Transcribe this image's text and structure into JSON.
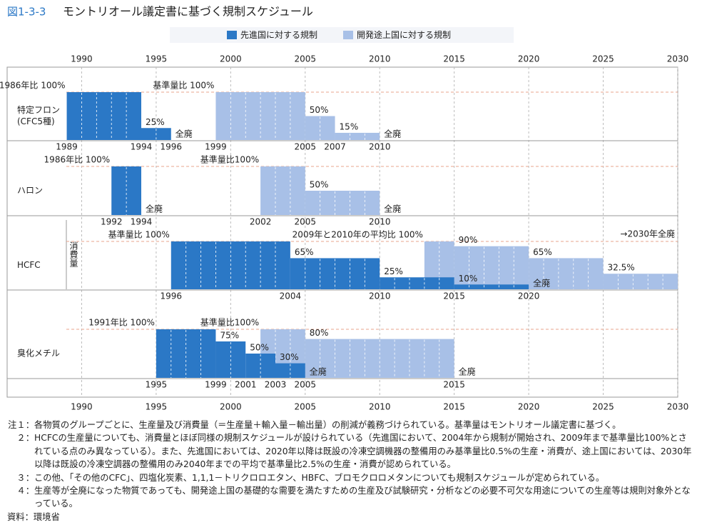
{
  "chart_data": {
    "type": "schedule",
    "figure_label": "図1-3-3",
    "title": "モントリオール議定書に基づく規制スケジュール",
    "series": [
      {
        "name": "先進国に対する規制",
        "color": "#2b78c6"
      },
      {
        "name": "開発途上国に対する規制",
        "color": "#a8c0e7"
      }
    ],
    "xlim": [
      1985,
      2030
    ],
    "xticks": [
      1990,
      1995,
      2000,
      2005,
      2010,
      2015,
      2020,
      2025,
      2030
    ],
    "grid": true,
    "groups": [
      {
        "name": "特定フロン",
        "subname": "(CFC5種)",
        "ylim": [
          0,
          100
        ],
        "steps": [
          {
            "x": [
              1989,
              1994,
              1996
            ],
            "values": [
              100,
              25,
              0
            ],
            "value_labels": [
              "1986年比 100%",
              "25%",
              "全廃"
            ]
          },
          {
            "x": [
              1999,
              2005,
              2007,
              2010
            ],
            "values": [
              100,
              50,
              15,
              0
            ],
            "value_labels": [
              "基準量比 100%",
              "50%",
              "15%",
              "全廃"
            ]
          }
        ],
        "year_labels": [
          1989,
          1994,
          1996,
          1999,
          2005,
          2007,
          2010
        ]
      },
      {
        "name": "ハロン",
        "ylim": [
          0,
          100
        ],
        "steps": [
          {
            "x": [
              1992,
              1994
            ],
            "values": [
              100,
              0
            ],
            "value_labels": [
              "1986年比 100%",
              "全廃"
            ]
          },
          {
            "x": [
              2002,
              2005,
              2010
            ],
            "values": [
              100,
              50,
              0
            ],
            "value_labels": [
              "基準量比100%",
              "50%",
              "全廃"
            ]
          }
        ],
        "year_labels": [
          1992,
          1994,
          2002,
          2005,
          2010
        ]
      },
      {
        "name": "HCFC",
        "vertical_label": "消費量",
        "ylim": [
          0,
          100
        ],
        "steps": [
          {
            "x": [
              1996,
              2004,
              2010,
              2015,
              2020
            ],
            "values": [
              100,
              65,
              25,
              10,
              0
            ],
            "value_labels": [
              "基準量比 100%",
              "65%",
              "25%",
              "10%",
              "全廃"
            ]
          },
          {
            "x": [
              2013,
              2015,
              2020,
              2025,
              2030
            ],
            "values": [
              100,
              90,
              65,
              32.5,
              0
            ],
            "value_labels": [
              "2009年と2010年の平均比 100%",
              "90%",
              "65%",
              "32.5%",
              "→2030年全廃"
            ]
          }
        ],
        "year_labels": [
          1996,
          2004,
          2010,
          2015,
          2020
        ]
      },
      {
        "name": "臭化メチル",
        "ylim": [
          0,
          100
        ],
        "steps": [
          {
            "x": [
              1995,
              1999,
              2001,
              2003,
              2005
            ],
            "values": [
              100,
              75,
              50,
              30,
              0
            ],
            "value_labels": [
              "1991年比 100%",
              "75%",
              "50%",
              "30%",
              "全廃"
            ]
          },
          {
            "x": [
              2002,
              2005,
              2015
            ],
            "values": [
              100,
              80,
              0
            ],
            "value_labels": [
              "基準量比100%",
              "80%",
              "全廃"
            ]
          }
        ],
        "year_labels": [
          1995,
          1999,
          2001,
          2003,
          2005,
          2015
        ]
      }
    ]
  },
  "notes": [
    {
      "marker": "注１：",
      "text": "各物質のグループごとに、生産量及び消費量（＝生産量＋輸入量－輸出量）の削減が義務づけられている。基準量はモントリオール議定書に基づく。"
    },
    {
      "marker": "２：",
      "text": "HCFCの生産量についても、消費量とほぼ同様の規制スケジュールが設けられている（先進国において、2004年から規制が開始され、2009年まで基準量比100%とされている点のみ異なっている）。また、先進国においては、2020年以降は既設の冷凍空調機器の整備用のみ基準量比0.5%の生産・消費が、途上国においては、2030年以降は既設の冷凍空調器の整備用のみ2040年までの平均で基準量比2.5%の生産・消費が認められている。"
    },
    {
      "marker": "３：",
      "text": "この他、「その他のCFC」、四塩化炭素、1,1,1－トリクロロエタン、HBFC、ブロモクロロメタンについても規制スケジュールが定められている。"
    },
    {
      "marker": "４：",
      "text": "生産等が全廃になった物質であっても、開発途上国の基礎的な需要を満たすための生産及び試験研究・分析などの必要不可欠な用途についての生産等は規則対象外となっている。"
    }
  ],
  "source": "資料：環境省"
}
